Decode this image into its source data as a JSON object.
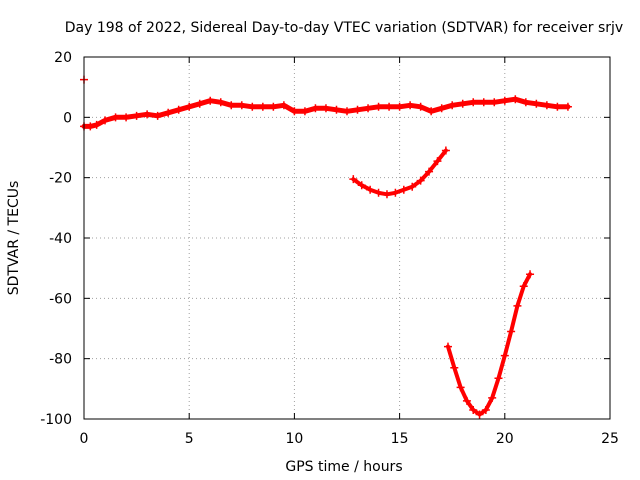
{
  "chart_data": {
    "type": "scatter",
    "title": "Day 198 of 2022, Sidereal Day-to-day VTEC variation (SDTVAR) for receiver srjv",
    "xlabel": "GPS time / hours",
    "ylabel": "SDTVAR / TECUs",
    "xlim": [
      0,
      25
    ],
    "ylim": [
      -100,
      20
    ],
    "xticks": [
      0,
      5,
      10,
      15,
      20,
      25
    ],
    "yticks": [
      20,
      0,
      -20,
      -40,
      -60,
      -80,
      -100
    ],
    "grid": true,
    "legend": "none",
    "marker_color": "#ff0000",
    "series": [
      {
        "values_x": [
          0.0,
          0.3,
          0.6,
          1.0,
          1.5,
          2.0,
          2.5,
          3.0,
          3.5,
          4.0,
          4.5,
          5.0,
          5.5,
          6.0,
          6.5,
          7.0,
          7.5,
          8.0,
          8.5,
          9.0,
          9.5,
          10.0,
          10.5,
          11.0,
          11.5,
          12.0,
          12.5,
          13.0,
          13.5,
          14.0,
          14.5,
          15.0,
          15.5,
          16.0,
          16.5,
          17.0,
          17.5,
          18.0,
          18.5,
          19.0,
          19.5,
          20.0,
          20.5,
          21.0,
          21.5,
          22.0,
          22.5,
          23.0
        ],
        "values_y": [
          -3,
          -3,
          -2.5,
          -1,
          0,
          0,
          0.5,
          1,
          0.5,
          1.5,
          2.5,
          3.5,
          4.5,
          5.5,
          5,
          4,
          4,
          3.5,
          3.5,
          3.5,
          4,
          2,
          2,
          3,
          3,
          2.5,
          2,
          2.5,
          3,
          3.5,
          3.5,
          3.5,
          4,
          3.5,
          2,
          3,
          4,
          4.5,
          5,
          5,
          5,
          5.5,
          6,
          5,
          4.5,
          4,
          3.5,
          3.5
        ]
      },
      {
        "values_x": [
          12.8,
          13.2,
          13.6,
          14.0,
          14.4,
          14.8,
          15.2,
          15.6,
          16.0,
          16.4,
          16.8,
          17.2
        ],
        "values_y": [
          -20.5,
          -22.5,
          -24,
          -25,
          -25.5,
          -25,
          -24,
          -23,
          -21,
          -18,
          -14.5,
          -11
        ]
      },
      {
        "values_x": [
          17.3,
          17.6,
          17.9,
          18.2,
          18.5,
          18.8,
          19.1,
          19.4,
          19.7,
          20.0,
          20.3,
          20.6,
          20.9,
          21.2
        ],
        "values_y": [
          -76,
          -83,
          -89.5,
          -94,
          -97,
          -98.5,
          -97,
          -93,
          -86.5,
          -79,
          -71,
          -62.5,
          -56,
          -52
        ]
      },
      {
        "values_x": [
          0.0
        ],
        "values_y": [
          12.5
        ]
      }
    ]
  }
}
